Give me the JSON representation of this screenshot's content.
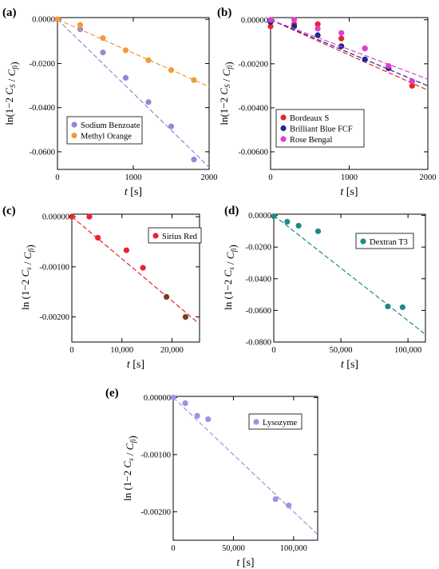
{
  "chart_data": [
    {
      "panel_label": "(a)",
      "type": "scatter",
      "xlabel": "t",
      "xunit": "[s]",
      "ylabel": "ln(1−2 C_S / C_fi)",
      "xlim": [
        0,
        2000
      ],
      "ylim": [
        -0.068,
        0.0008
      ],
      "xticks": [
        0,
        1000,
        2000
      ],
      "xtick_labels": [
        "0",
        "1000",
        "2000"
      ],
      "yticks": [
        0,
        -0.02,
        -0.04,
        -0.06
      ],
      "ytick_labels": [
        "0.0000",
        "-0.0200",
        "-0.0400",
        "-0.0600"
      ],
      "legend_position": "bottom-center",
      "series": [
        {
          "name": "Sodium Benzoate",
          "color": "#8f8ad6",
          "x": [
            0,
            300,
            600,
            900,
            1200,
            1500,
            1800
          ],
          "y": [
            0,
            -0.0045,
            -0.015,
            -0.0265,
            -0.0375,
            -0.0485,
            -0.0635
          ],
          "fit": {
            "x": [
              0,
              2000
            ],
            "y": [
              0,
              -0.067
            ]
          }
        },
        {
          "name": "Methyl Orange",
          "color": "#f39a3c",
          "x": [
            0,
            300,
            600,
            900,
            1200,
            1500,
            1800
          ],
          "y": [
            0,
            -0.0025,
            -0.0085,
            -0.014,
            -0.0185,
            -0.023,
            -0.0275
          ],
          "fit": {
            "x": [
              0,
              2000
            ],
            "y": [
              0,
              -0.0305
            ]
          }
        }
      ]
    },
    {
      "panel_label": "(b)",
      "type": "scatter",
      "xlabel": "t",
      "xunit": "[s]",
      "ylabel": "ln(1−2 C_S / C_fi)",
      "xlim": [
        0,
        2000
      ],
      "ylim": [
        -0.0068,
        0.0001
      ],
      "xticks": [
        0,
        1000,
        2000
      ],
      "xtick_labels": [
        "0",
        "1000",
        "2000"
      ],
      "yticks": [
        0,
        -0.002,
        -0.004,
        -0.006
      ],
      "ytick_labels": [
        "0.00000",
        "-0.00200",
        "-0.00400",
        "-0.00600"
      ],
      "legend_position": "bottom-left",
      "series": [
        {
          "name": "Bordeaux S",
          "color": "#e8242a",
          "x": [
            0,
            300,
            600,
            900,
            1200,
            1500,
            1800
          ],
          "y": [
            -0.0003,
            -0.0002,
            -0.0002,
            -0.00085,
            -0.0013,
            -0.0022,
            -0.003
          ],
          "fit": {
            "x": [
              0,
              2000
            ],
            "y": [
              0,
              -0.0032
            ]
          }
        },
        {
          "name": "Brilliant Blue FCF",
          "color": "#1d2a8e",
          "x": [
            0,
            300,
            600,
            900,
            1200,
            1500,
            1800
          ],
          "y": [
            -0.0001,
            -0.0003,
            -0.0007,
            -0.0012,
            -0.0018,
            -0.0022,
            -0.0028
          ],
          "fit": {
            "x": [
              0,
              2000
            ],
            "y": [
              0,
              -0.003
            ]
          }
        },
        {
          "name": "Rose Bengal",
          "color": "#df3fcf",
          "x": [
            0,
            300,
            600,
            900,
            1200,
            1500,
            1800
          ],
          "y": [
            0,
            0,
            -0.0004,
            -0.0006,
            -0.0013,
            -0.0021,
            -0.0028
          ],
          "fit": {
            "x": [
              0,
              2000
            ],
            "y": [
              0,
              -0.0027
            ]
          }
        }
      ]
    },
    {
      "panel_label": "(c)",
      "type": "scatter",
      "xlabel": "t",
      "xunit": "[s]",
      "ylabel": "ln (1−2 C_s / C_fi)",
      "xlim": [
        0,
        25500
      ],
      "ylim": [
        -0.0025,
        5e-05
      ],
      "xticks": [
        0,
        10000,
        20000
      ],
      "xtick_labels": [
        "0",
        "10,000",
        "20,000"
      ],
      "yticks": [
        0,
        -0.001,
        -0.002
      ],
      "ytick_labels": [
        "0.00000",
        "-0.00100",
        "-0.00200"
      ],
      "legend_position": "top-right",
      "series": [
        {
          "name": "Sirius Red",
          "color": "#e8242a",
          "x": [
            0,
            3500,
            5200,
            10900,
            14200,
            18900,
            22700
          ],
          "y": [
            0,
            0,
            -0.00042,
            -0.00067,
            -0.00102,
            -0.0016,
            -0.002
          ],
          "point_colors": [
            "#e8242a",
            "#e8242a",
            "#e8242a",
            "#e8242a",
            "#e8242a",
            "#7a3b22",
            "#7a3b22"
          ],
          "fit": {
            "x": [
              0,
              25000
            ],
            "y": [
              0,
              -0.0021
            ]
          }
        }
      ]
    },
    {
      "panel_label": "(d)",
      "type": "scatter",
      "xlabel": "t",
      "xunit": "[s]",
      "ylabel": "ln (1−2 C_s / C_fi)",
      "xlim": [
        0,
        113000
      ],
      "ylim": [
        -0.08,
        0.0008
      ],
      "xticks": [
        0,
        50000,
        100000
      ],
      "xtick_labels": [
        "0",
        "50,000",
        "100,000"
      ],
      "yticks": [
        0,
        -0.02,
        -0.04,
        -0.06,
        -0.08
      ],
      "ytick_labels": [
        "0.0000",
        "-0.0200",
        "-0.0400",
        "-0.0600",
        "-0.0800"
      ],
      "legend_position": "top-right",
      "series": [
        {
          "name": "Dextran T3",
          "color": "#1f8a86",
          "x": [
            0,
            10000,
            18500,
            33000,
            85000,
            96000
          ],
          "y": [
            -0.0005,
            -0.004,
            -0.0065,
            -0.01,
            -0.0575,
            -0.058
          ],
          "fit": {
            "x": [
              0,
              112000
            ],
            "y": [
              0,
              -0.0745
            ]
          }
        }
      ]
    },
    {
      "panel_label": "(e)",
      "type": "scatter",
      "xlabel": "t",
      "xunit": "[s]",
      "ylabel": "ln (1−2 C_s / C_fi)",
      "xlim": [
        0,
        120000
      ],
      "ylim": [
        -0.0025,
        2e-05
      ],
      "xticks": [
        0,
        50000,
        100000
      ],
      "xtick_labels": [
        "0",
        "50,000",
        "100,000"
      ],
      "yticks": [
        0,
        -0.001,
        -0.002
      ],
      "ytick_labels": [
        "0.00000",
        "-0.00100",
        "-0.00200"
      ],
      "legend_position": "top-right",
      "series": [
        {
          "name": "Lysozyme",
          "color": "#9a94e4",
          "x": [
            0,
            10000,
            20000,
            29000,
            85000,
            96000
          ],
          "y": [
            0,
            -0.0001,
            -0.00032,
            -0.00038,
            -0.00178,
            -0.00189
          ],
          "fit": {
            "x": [
              0,
              120000
            ],
            "y": [
              0,
              -0.0024
            ]
          }
        }
      ]
    }
  ]
}
